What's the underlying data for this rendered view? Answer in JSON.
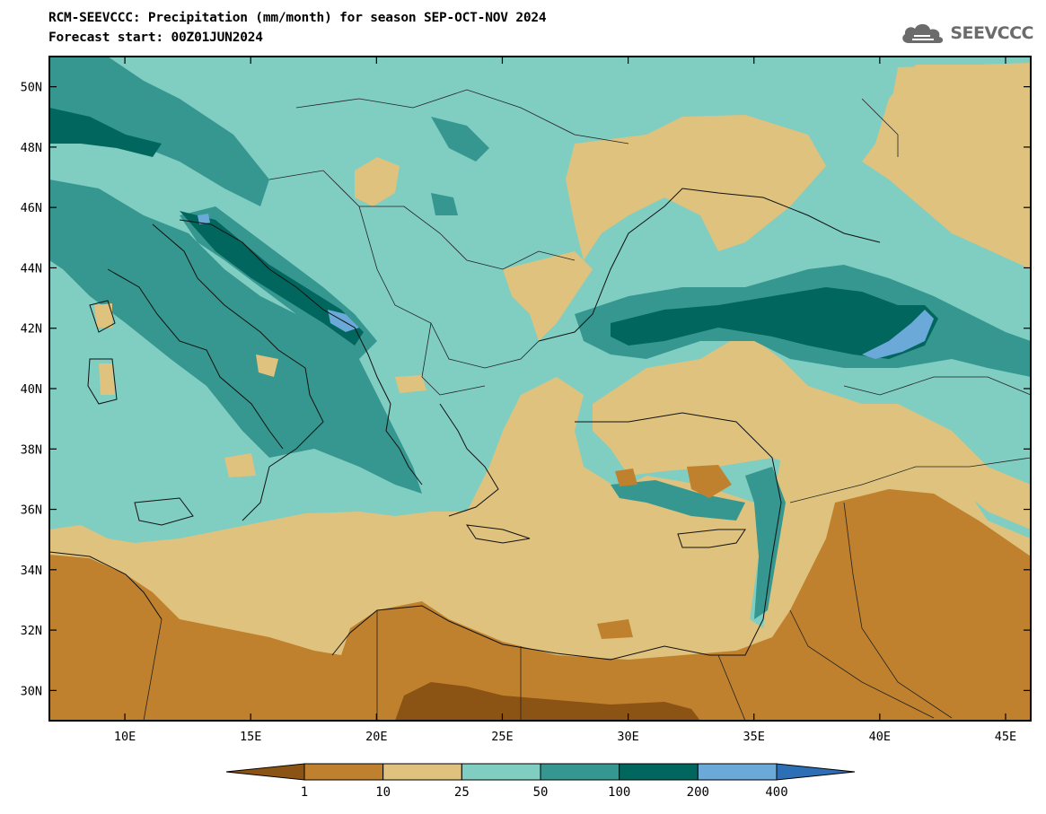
{
  "title": {
    "line1": "RCM-SEEVCCC: Precipitation (mm/month) for season SEP-OCT-NOV 2024",
    "line2": "Forecast start: 00Z01JUN2024"
  },
  "logo": {
    "text": "SEEVCCC",
    "icon": "cloud-icon",
    "color": "#6b6b6b"
  },
  "map": {
    "lon_range": [
      7,
      46
    ],
    "lat_range": [
      29,
      51
    ],
    "lon_ticks": [
      10,
      15,
      20,
      25,
      30,
      35,
      40,
      45
    ],
    "lon_tick_labels": [
      "10E",
      "15E",
      "20E",
      "25E",
      "30E",
      "35E",
      "40E",
      "45E"
    ],
    "lat_ticks": [
      30,
      32,
      34,
      36,
      38,
      40,
      42,
      44,
      46,
      48,
      50
    ],
    "lat_tick_labels": [
      "30N",
      "32N",
      "34N",
      "36N",
      "38N",
      "40N",
      "42N",
      "44N",
      "46N",
      "48N",
      "50N"
    ],
    "variable": "Precipitation (mm/month)",
    "season": "SEP-OCT-NOV 2024"
  },
  "colorbar": {
    "levels": [
      "1",
      "10",
      "25",
      "50",
      "100",
      "200",
      "400"
    ],
    "colors": [
      "#8c5414",
      "#bf812d",
      "#dfc27d",
      "#80cdc1",
      "#35978f",
      "#01665e",
      "#6aa9d8",
      "#2d6fb4"
    ]
  }
}
